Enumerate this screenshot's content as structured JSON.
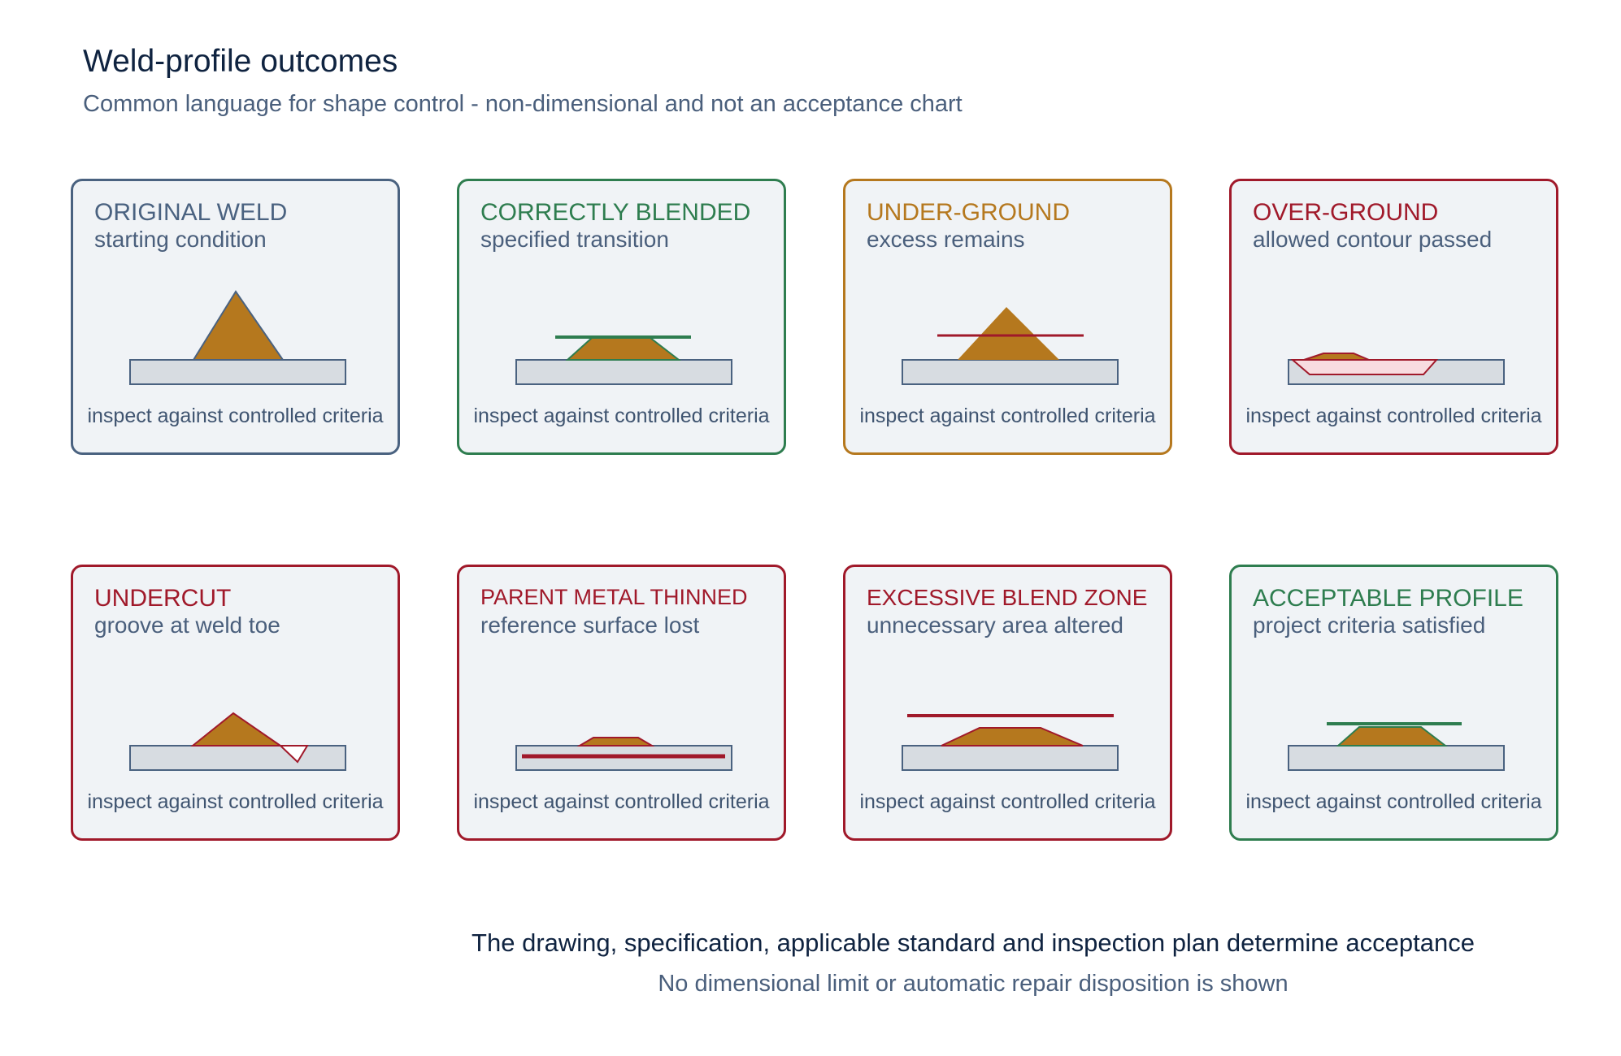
{
  "header": {
    "title": "Weld-profile outcomes",
    "subtitle": "Common language for shape control - non-dimensional and not an acceptance chart"
  },
  "colors": {
    "neutral": "#4a6280",
    "good": "#2e7d4f",
    "caution": "#b5781e",
    "bad": "#a0192a",
    "weld_fill": "#b5781e",
    "plate_fill": "#d7dce1"
  },
  "cards": [
    {
      "title": "ORIGINAL WELD",
      "subtitle": "starting condition",
      "note": "inspect against controlled criteria",
      "status": "neutral"
    },
    {
      "title": "CORRECTLY BLENDED",
      "subtitle": "specified transition",
      "note": "inspect against controlled criteria",
      "status": "good"
    },
    {
      "title": "UNDER-GROUND",
      "subtitle": "excess remains",
      "note": "inspect against controlled criteria",
      "status": "caution"
    },
    {
      "title": "OVER-GROUND",
      "subtitle": "allowed contour passed",
      "note": "inspect against controlled criteria",
      "status": "bad"
    },
    {
      "title": "UNDERCUT",
      "subtitle": "groove at weld toe",
      "note": "inspect against controlled criteria",
      "status": "bad"
    },
    {
      "title": "PARENT METAL THINNED",
      "subtitle": "reference surface lost",
      "note": "inspect against controlled criteria",
      "status": "bad"
    },
    {
      "title": "EXCESSIVE BLEND ZONE",
      "subtitle": "unnecessary area altered",
      "note": "inspect against controlled criteria",
      "status": "bad"
    },
    {
      "title": "ACCEPTABLE PROFILE",
      "subtitle": "project criteria satisfied",
      "note": "inspect against controlled criteria",
      "status": "good"
    }
  ],
  "footer": {
    "main": "The drawing, specification, applicable standard and inspection plan determine acceptance",
    "sub": "No dimensional limit or automatic repair disposition is shown"
  }
}
